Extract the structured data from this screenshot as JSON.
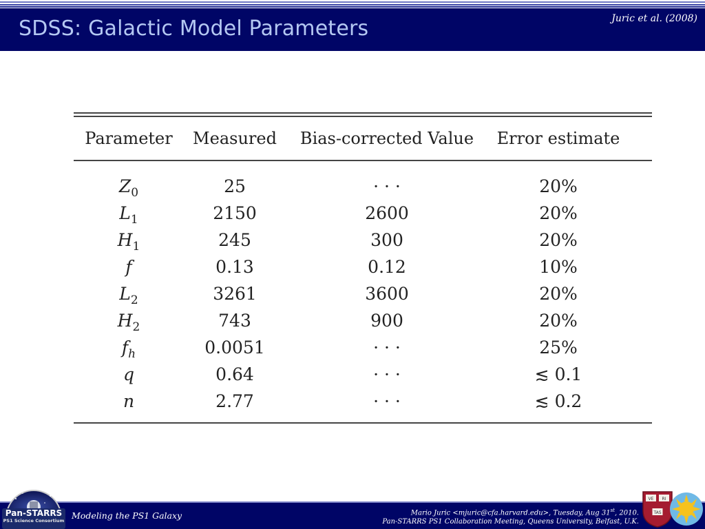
{
  "header": {
    "title": "SDSS: Galactic Model Parameters",
    "citation": "Juric et al. (2008)",
    "background": "#000566",
    "title_color": "#b4c8f2"
  },
  "table": {
    "columns": [
      "Parameter",
      "Measured",
      "Bias-corrected Value",
      "Error estimate"
    ],
    "rows": [
      {
        "symbol": "Z",
        "sub": "0",
        "sub_italic": false,
        "measured": "25",
        "bias": "· · ·",
        "error": "20%"
      },
      {
        "symbol": "L",
        "sub": "1",
        "sub_italic": false,
        "measured": "2150",
        "bias": "2600",
        "error": "20%"
      },
      {
        "symbol": "H",
        "sub": "1",
        "sub_italic": false,
        "measured": "245",
        "bias": "300",
        "error": "20%"
      },
      {
        "symbol": "f",
        "sub": "",
        "sub_italic": false,
        "measured": "0.13",
        "bias": "0.12",
        "error": "10%"
      },
      {
        "symbol": "L",
        "sub": "2",
        "sub_italic": false,
        "measured": "3261",
        "bias": "3600",
        "error": "20%"
      },
      {
        "symbol": "H",
        "sub": "2",
        "sub_italic": false,
        "measured": "743",
        "bias": "900",
        "error": "20%"
      },
      {
        "symbol": "f",
        "sub": "h",
        "sub_italic": true,
        "measured": "0.0051",
        "bias": "· · ·",
        "error": "25%"
      },
      {
        "symbol": "q",
        "sub": "",
        "sub_italic": false,
        "measured": "0.64",
        "bias": "· · ·",
        "error": "≲ 0.1"
      },
      {
        "symbol": "n",
        "sub": "",
        "sub_italic": false,
        "measured": "2.77",
        "bias": "· · ·",
        "error": "≲ 0.2"
      }
    ]
  },
  "footer": {
    "left": "Modeling the PS1 Galaxy",
    "right_line1_pre": "Mario Juric <mjuric@cfa.harvard.edu>, Tuesday, Aug 31",
    "right_line1_sup": "st",
    "right_line1_post": ", 2010.",
    "right_line2": "Pan-STARRS PS1 Collaboration Meeting, Queens University, Belfast, U.K.",
    "logo_title": "Pan-STARRS",
    "logo_subtitle": "PS1 Science Consortium",
    "shield_text": [
      "VE",
      "RI",
      "TAS"
    ]
  }
}
